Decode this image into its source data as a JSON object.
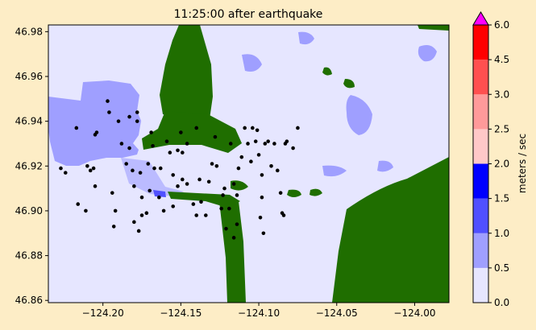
{
  "chart_data": {
    "type": "heatmap",
    "title": "11:25:00 after earthquake",
    "xlabel": "",
    "ylabel": "",
    "xlim": [
      -124.235,
      -123.978
    ],
    "ylim": [
      46.859,
      46.983
    ],
    "xticks": [
      -124.2,
      -124.15,
      -124.1,
      -124.05,
      -124.0
    ],
    "xtick_labels": [
      "−124.20",
      "−124.15",
      "−124.10",
      "−124.05",
      "−124.00"
    ],
    "yticks": [
      46.86,
      46.88,
      46.9,
      46.92,
      46.94,
      46.96,
      46.98
    ],
    "ytick_labels": [
      "46.86",
      "46.88",
      "46.90",
      "46.92",
      "46.94",
      "46.96",
      "46.98"
    ],
    "colorbar": {
      "label": "meters / sec",
      "levels": [
        0.0,
        0.5,
        1.0,
        1.5,
        2.0,
        2.5,
        3.0,
        4.5,
        6.0
      ],
      "level_labels": [
        "0.0",
        "0.5",
        "1.0",
        "1.5",
        "2.0",
        "2.5",
        "3.0",
        "4.5",
        "6.0"
      ],
      "colors": [
        "#e6e6ff",
        "#9f9fff",
        "#5050ff",
        "#0000ff",
        "#ffc8c8",
        "#ff9a9a",
        "#ff5050",
        "#ff0000"
      ],
      "extend_color": "#ff00ff"
    },
    "colors": {
      "land": "#1f6e00",
      "water": "#e6e6ff",
      "flow": "#9f9fff",
      "flow_fast": "#5050ff"
    },
    "gauges": [
      [
        -124.227,
        46.919
      ],
      [
        -124.224,
        46.917
      ],
      [
        -124.217,
        46.937
      ],
      [
        -124.216,
        46.903
      ],
      [
        -124.211,
        46.9
      ],
      [
        -124.21,
        46.92
      ],
      [
        -124.208,
        46.918
      ],
      [
        -124.206,
        46.919
      ],
      [
        -124.205,
        46.911
      ],
      [
        -124.205,
        46.934
      ],
      [
        -124.204,
        46.935
      ],
      [
        -124.197,
        46.949
      ],
      [
        -124.196,
        46.944
      ],
      [
        -124.194,
        46.908
      ],
      [
        -124.192,
        46.9
      ],
      [
        -124.193,
        46.893
      ],
      [
        -124.19,
        46.94
      ],
      [
        -124.188,
        46.93
      ],
      [
        -124.185,
        46.921
      ],
      [
        -124.183,
        46.942
      ],
      [
        -124.183,
        46.928
      ],
      [
        -124.181,
        46.918
      ],
      [
        -124.18,
        46.911
      ],
      [
        -124.18,
        46.895
      ],
      [
        -124.178,
        46.944
      ],
      [
        -124.178,
        46.94
      ],
      [
        -124.177,
        46.891
      ],
      [
        -124.176,
        46.917
      ],
      [
        -124.175,
        46.906
      ],
      [
        -124.175,
        46.898
      ],
      [
        -124.172,
        46.899
      ],
      [
        -124.171,
        46.921
      ],
      [
        -124.17,
        46.909
      ],
      [
        -124.169,
        46.935
      ],
      [
        -124.168,
        46.929
      ],
      [
        -124.167,
        46.919
      ],
      [
        -124.164,
        46.906
      ],
      [
        -124.163,
        46.919
      ],
      [
        -124.161,
        46.9
      ],
      [
        -124.159,
        46.931
      ],
      [
        -124.157,
        46.926
      ],
      [
        -124.155,
        46.916
      ],
      [
        -124.155,
        46.902
      ],
      [
        -124.152,
        46.927
      ],
      [
        -124.152,
        46.911
      ],
      [
        -124.15,
        46.935
      ],
      [
        -124.149,
        46.926
      ],
      [
        -124.149,
        46.914
      ],
      [
        -124.146,
        46.93
      ],
      [
        -124.146,
        46.912
      ],
      [
        -124.142,
        46.903
      ],
      [
        -124.14,
        46.937
      ],
      [
        -124.138,
        46.914
      ],
      [
        -124.137,
        46.904
      ],
      [
        -124.134,
        46.898
      ],
      [
        -124.132,
        46.913
      ],
      [
        -124.13,
        46.921
      ],
      [
        -124.128,
        46.933
      ],
      [
        -124.127,
        46.92
      ],
      [
        -124.124,
        46.901
      ],
      [
        -124.123,
        46.907
      ],
      [
        -124.121,
        46.892
      ],
      [
        -124.119,
        46.901
      ],
      [
        -124.118,
        46.93
      ],
      [
        -124.116,
        46.912
      ],
      [
        -124.114,
        46.907
      ],
      [
        -124.114,
        46.894
      ],
      [
        -124.113,
        46.919
      ],
      [
        -124.111,
        46.924
      ],
      [
        -124.109,
        46.937
      ],
      [
        -124.107,
        46.93
      ],
      [
        -124.105,
        46.922
      ],
      [
        -124.104,
        46.937
      ],
      [
        -124.102,
        46.931
      ],
      [
        -124.101,
        46.936
      ],
      [
        -124.1,
        46.925
      ],
      [
        -124.098,
        46.916
      ],
      [
        -124.098,
        46.906
      ],
      [
        -124.097,
        46.89
      ],
      [
        -124.096,
        46.93
      ],
      [
        -124.094,
        46.931
      ],
      [
        -124.092,
        46.92
      ],
      [
        -124.09,
        46.93
      ],
      [
        -124.088,
        46.918
      ],
      [
        -124.086,
        46.908
      ],
      [
        -124.085,
        46.899
      ],
      [
        -124.084,
        46.898
      ],
      [
        -124.083,
        46.93
      ],
      [
        -124.082,
        46.931
      ],
      [
        -124.078,
        46.928
      ],
      [
        -124.075,
        46.937
      ],
      [
        -124.14,
        46.898
      ],
      [
        -124.122,
        46.91
      ],
      [
        -124.099,
        46.897
      ],
      [
        -124.116,
        46.888
      ]
    ]
  }
}
